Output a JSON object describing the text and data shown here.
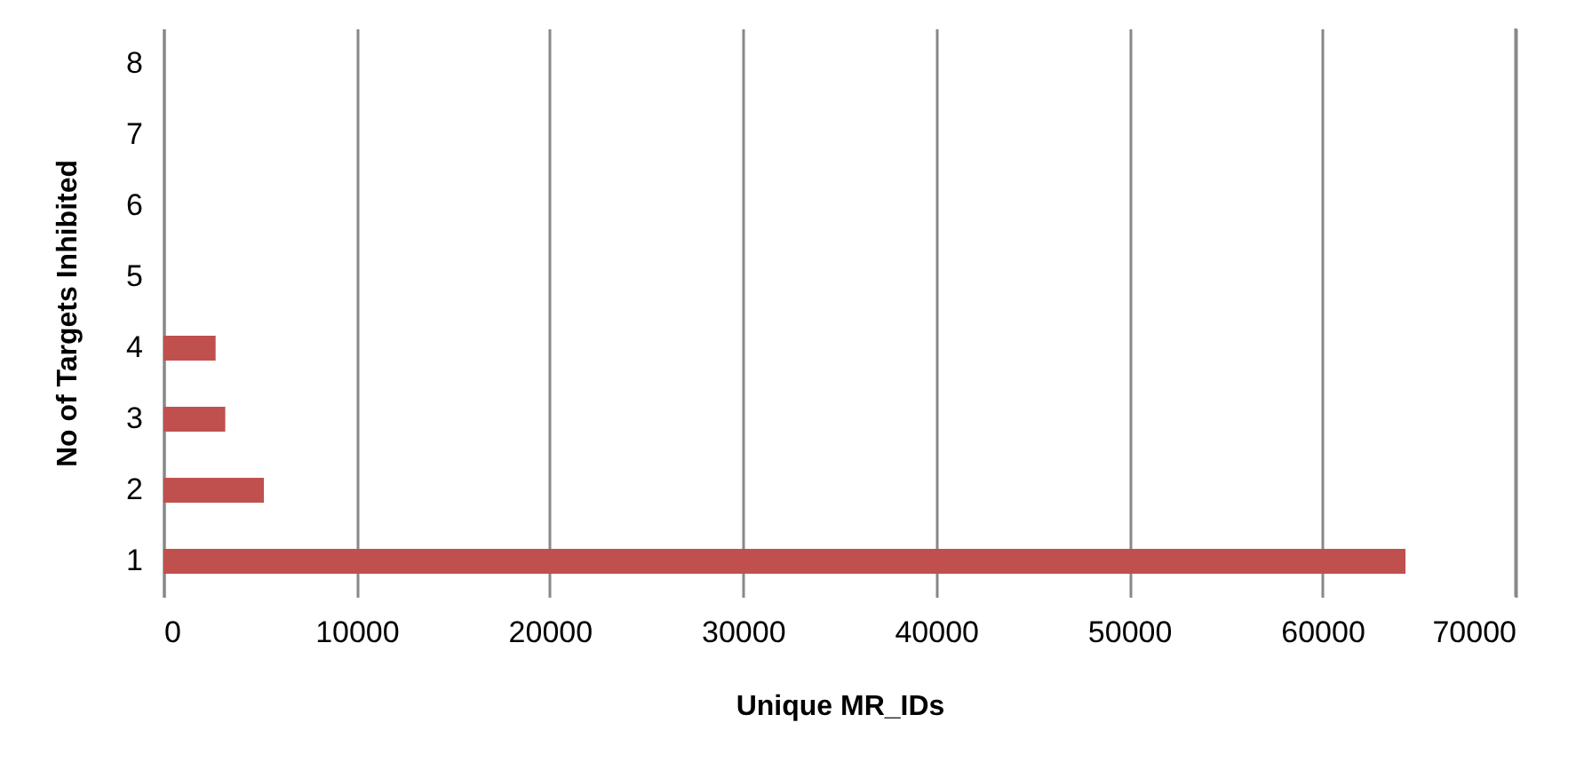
{
  "chart_data": {
    "type": "bar",
    "orientation": "horizontal",
    "xlabel": "Unique MR_IDs",
    "ylabel": "No of Targets Inhibited",
    "categories": [
      "8",
      "7",
      "6",
      "5",
      "4",
      "3",
      "2",
      "1"
    ],
    "values": [
      0,
      0,
      0,
      0,
      2700,
      3200,
      5200,
      64300
    ],
    "color": "#c0504d",
    "xlim": [
      0,
      70000
    ],
    "xticks": [
      0,
      10000,
      20000,
      30000,
      40000,
      50000,
      60000,
      70000
    ],
    "grid": "x"
  }
}
